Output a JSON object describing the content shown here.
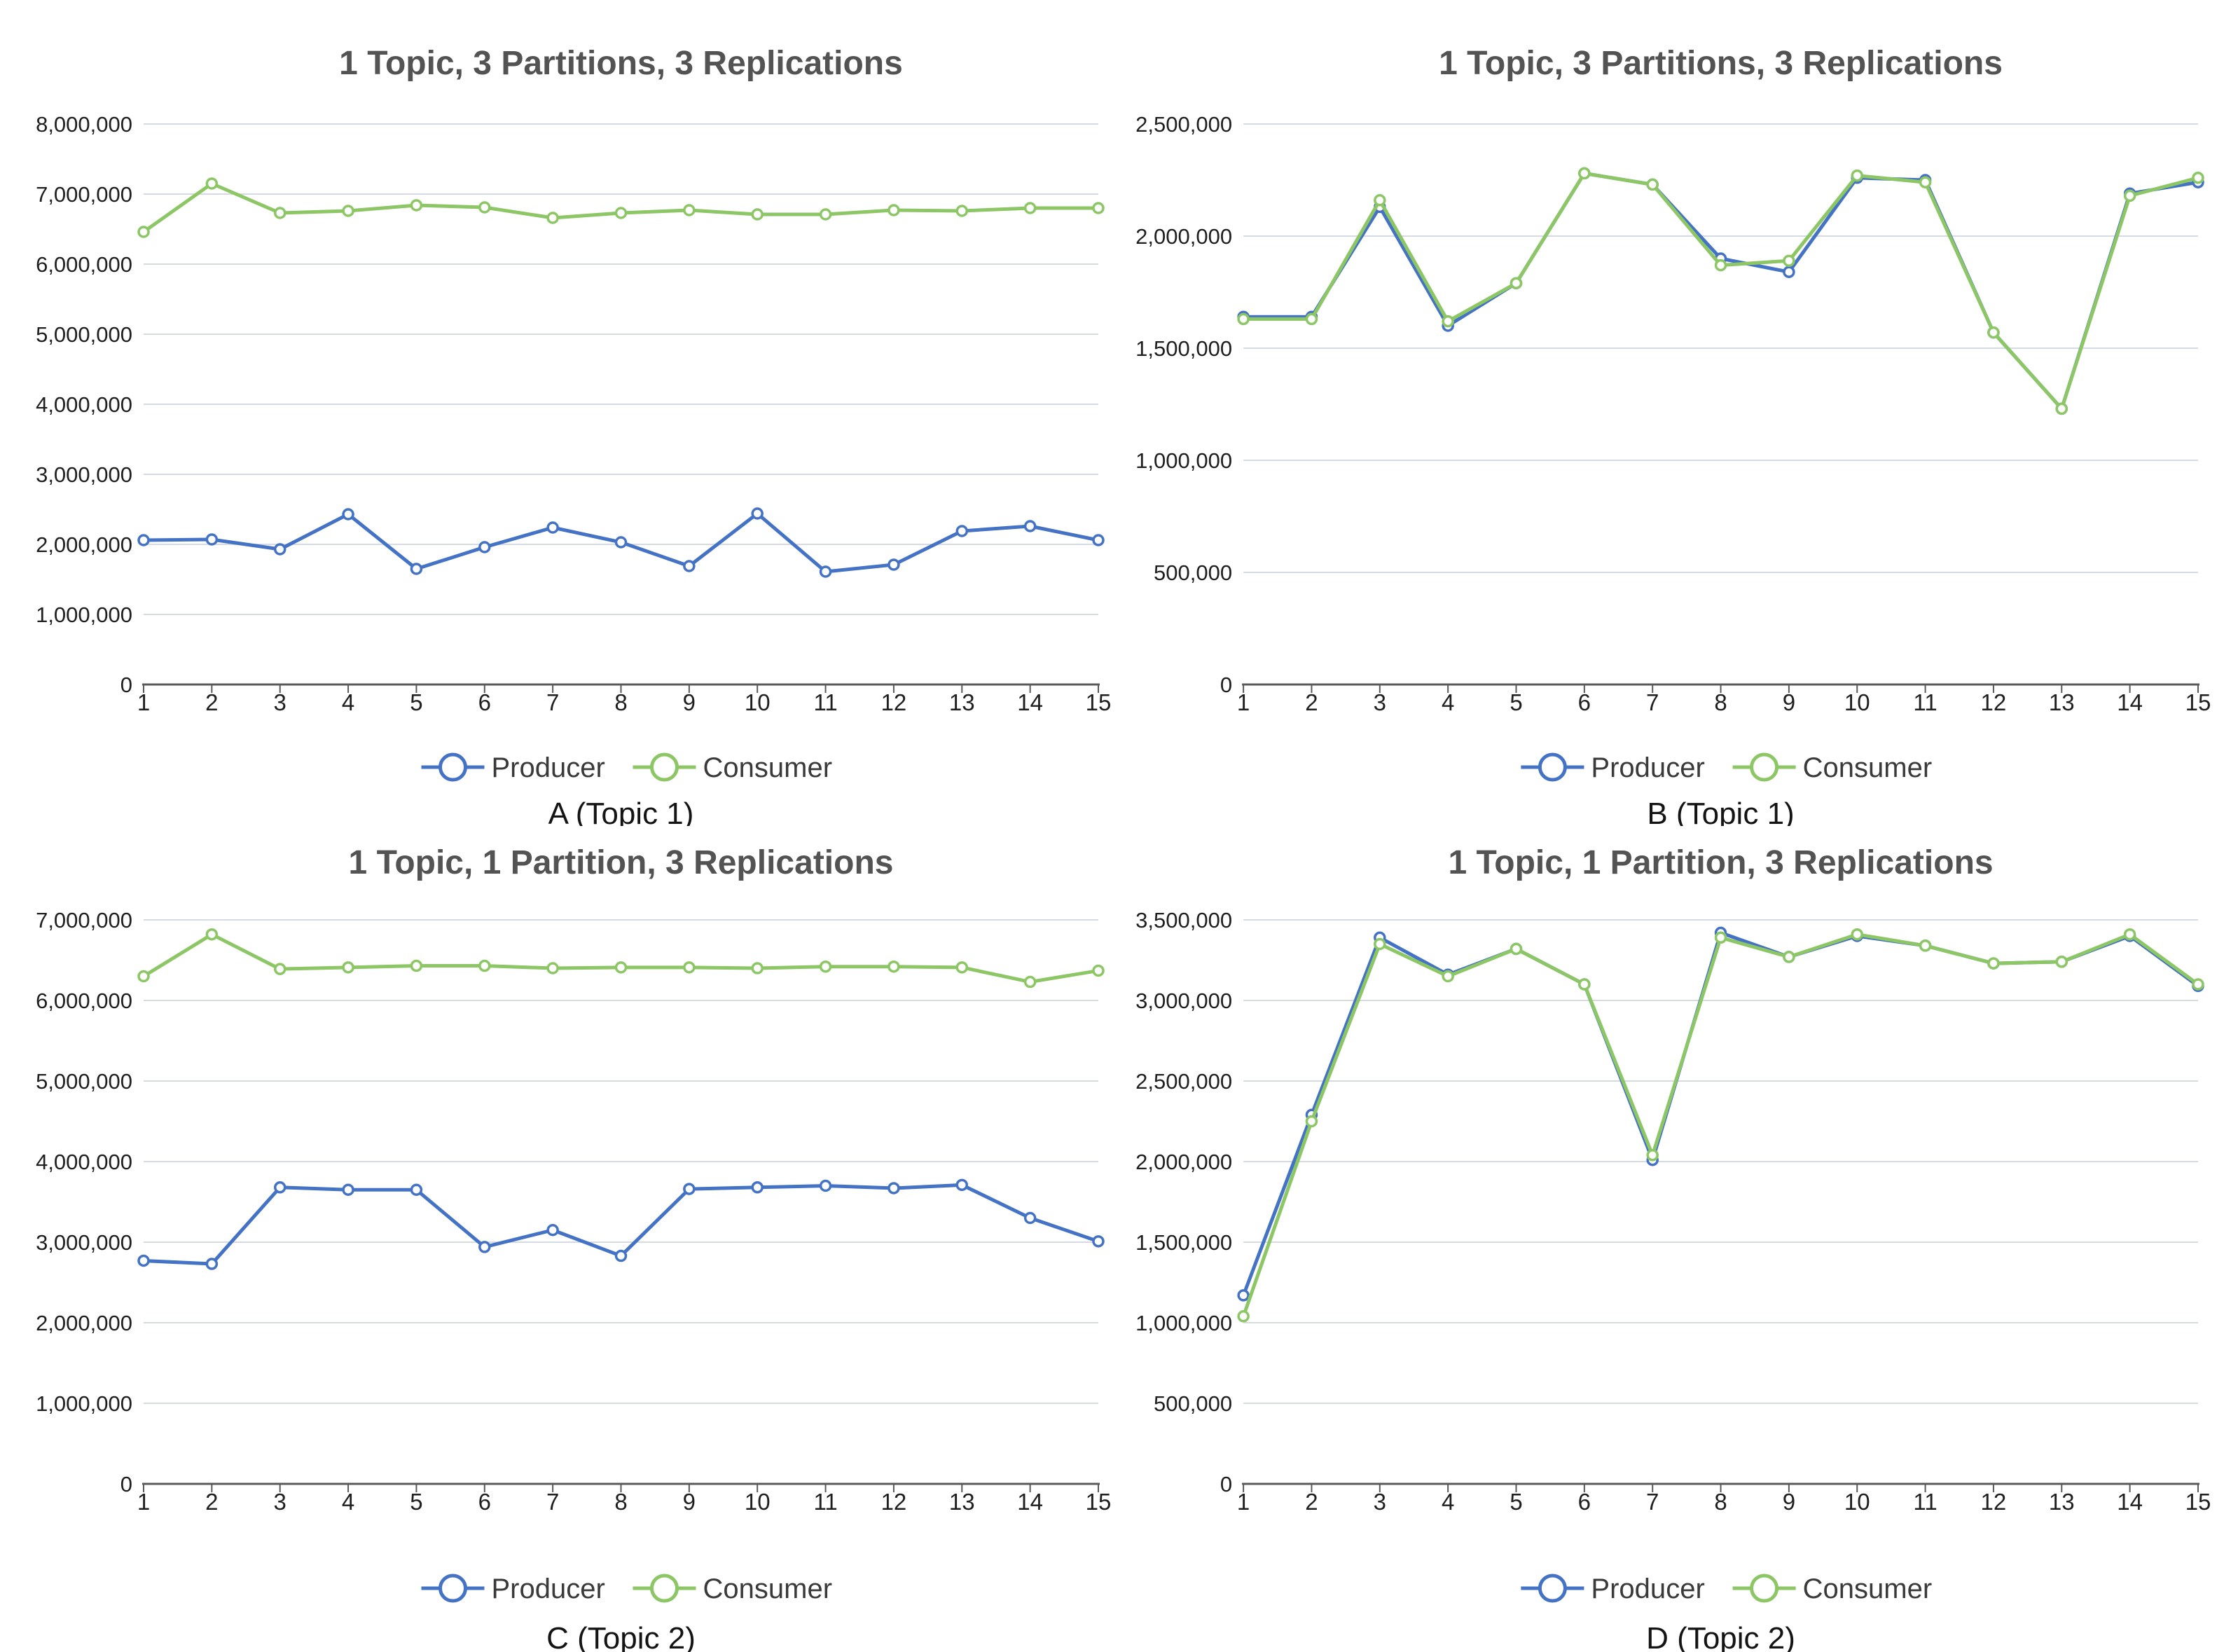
{
  "page": {
    "background": "#FFFFFF"
  },
  "colors": {
    "producer": "#4472C4",
    "consumer": "#8CC665",
    "gridline": "#D6DAE3",
    "axis": "#595959",
    "tick_label": "#1F1F1F",
    "title": "#535353",
    "legend_text": "#3A3A3A",
    "caption": "#141414",
    "marker_fill": "#FFFFFF"
  },
  "legend": {
    "items": [
      {
        "label": "Producer",
        "color_key": "producer",
        "marker": "open-circle-with-line"
      },
      {
        "label": "Consumer",
        "color_key": "consumer",
        "marker": "open-circle-with-line"
      }
    ],
    "position": "bottom"
  },
  "chart_data": [
    {
      "id": "A",
      "type": "line",
      "title": "1 Topic, 3 Partitions, 3 Replications",
      "caption": "A (Topic 1)",
      "xlabel": "",
      "ylabel": "",
      "x": [
        1,
        2,
        3,
        4,
        5,
        6,
        7,
        8,
        9,
        10,
        11,
        12,
        13,
        14,
        15
      ],
      "ylim": [
        0,
        8000000
      ],
      "ystep": 1000000,
      "grid": true,
      "legend_position": "bottom",
      "series": [
        {
          "name": "Producer",
          "color_key": "producer",
          "values": [
            2060000,
            2070000,
            1930000,
            2430000,
            1650000,
            1960000,
            2240000,
            2030000,
            1690000,
            2440000,
            1610000,
            1710000,
            2190000,
            2260000,
            2060000
          ]
        },
        {
          "name": "Consumer",
          "color_key": "consumer",
          "values": [
            6460000,
            7150000,
            6730000,
            6760000,
            6840000,
            6810000,
            6660000,
            6730000,
            6770000,
            6710000,
            6710000,
            6770000,
            6760000,
            6800000,
            6800000
          ]
        }
      ]
    },
    {
      "id": "B",
      "type": "line",
      "title": "1 Topic, 3 Partitions, 3 Replications",
      "caption": "B (Topic 1)",
      "xlabel": "",
      "ylabel": "",
      "x": [
        1,
        2,
        3,
        4,
        5,
        6,
        7,
        8,
        9,
        10,
        11,
        12,
        13,
        14,
        15
      ],
      "ylim": [
        0,
        2500000
      ],
      "ystep": 500000,
      "grid": true,
      "legend_position": "bottom",
      "series": [
        {
          "name": "Producer",
          "color_key": "producer",
          "values": [
            1640000,
            1640000,
            2130000,
            1600000,
            1790000,
            2280000,
            2230000,
            1900000,
            1840000,
            2260000,
            2250000,
            1570000,
            1230000,
            2190000,
            2240000
          ]
        },
        {
          "name": "Consumer",
          "color_key": "consumer",
          "values": [
            1630000,
            1630000,
            2160000,
            1620000,
            1790000,
            2280000,
            2230000,
            1870000,
            1890000,
            2270000,
            2240000,
            1570000,
            1230000,
            2180000,
            2260000
          ]
        }
      ]
    },
    {
      "id": "C",
      "type": "line",
      "title": "1 Topic, 1 Partition, 3 Replications",
      "caption": "C (Topic 2)",
      "xlabel": "",
      "ylabel": "",
      "x": [
        1,
        2,
        3,
        4,
        5,
        6,
        7,
        8,
        9,
        10,
        11,
        12,
        13,
        14,
        15
      ],
      "ylim": [
        0,
        7000000
      ],
      "ystep": 1000000,
      "grid": true,
      "legend_position": "bottom",
      "series": [
        {
          "name": "Producer",
          "color_key": "producer",
          "values": [
            2770000,
            2730000,
            3680000,
            3650000,
            3650000,
            2940000,
            3150000,
            2830000,
            3660000,
            3680000,
            3700000,
            3670000,
            3710000,
            3300000,
            3010000
          ]
        },
        {
          "name": "Consumer",
          "color_key": "consumer",
          "values": [
            6300000,
            6820000,
            6390000,
            6410000,
            6430000,
            6430000,
            6400000,
            6410000,
            6410000,
            6400000,
            6420000,
            6420000,
            6410000,
            6230000,
            6370000
          ]
        }
      ]
    },
    {
      "id": "D",
      "type": "line",
      "title": "1 Topic, 1 Partition, 3 Replications",
      "caption": "D (Topic 2)",
      "xlabel": "",
      "ylabel": "",
      "x": [
        1,
        2,
        3,
        4,
        5,
        6,
        7,
        8,
        9,
        10,
        11,
        12,
        13,
        14,
        15
      ],
      "ylim": [
        0,
        3500000
      ],
      "ystep": 500000,
      "grid": true,
      "legend_position": "bottom",
      "series": [
        {
          "name": "Producer",
          "color_key": "producer",
          "values": [
            1170000,
            2290000,
            3390000,
            3160000,
            3320000,
            3100000,
            2010000,
            3420000,
            3270000,
            3400000,
            3340000,
            3230000,
            3240000,
            3400000,
            3090000
          ]
        },
        {
          "name": "Consumer",
          "color_key": "consumer",
          "values": [
            1040000,
            2250000,
            3350000,
            3150000,
            3320000,
            3100000,
            2040000,
            3390000,
            3270000,
            3410000,
            3340000,
            3230000,
            3240000,
            3410000,
            3100000
          ]
        }
      ]
    }
  ]
}
